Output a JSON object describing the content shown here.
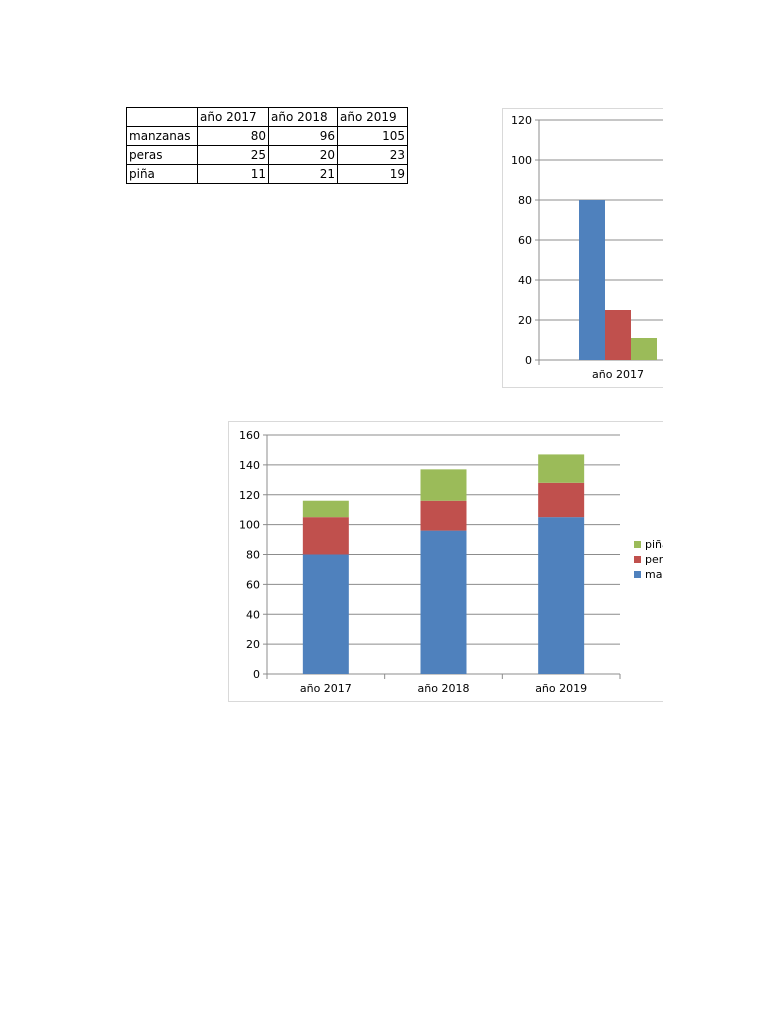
{
  "table": {
    "headers": [
      "",
      "año 2017",
      "año 2018",
      "año 2019"
    ],
    "rows": [
      {
        "label": "manzanas",
        "values": [
          "80",
          "96",
          "105"
        ]
      },
      {
        "label": "peras",
        "values": [
          "25",
          "20",
          "23"
        ]
      },
      {
        "label": "piña",
        "values": [
          "11",
          "21",
          "19"
        ]
      }
    ]
  },
  "chart_data": [
    {
      "type": "bar",
      "categories": [
        "año 2017"
      ],
      "series": [
        {
          "values": [
            80
          ],
          "color": "#4f81bd"
        },
        {
          "values": [
            25
          ],
          "color": "#c0504d"
        },
        {
          "values": [
            11
          ],
          "color": "#9bbb59"
        }
      ],
      "ylim": [
        0,
        120
      ],
      "yticks": [
        0,
        20,
        40,
        60,
        80,
        100,
        120
      ],
      "grid": true,
      "legend": "none"
    },
    {
      "type": "bar",
      "stacked": true,
      "categories": [
        "año 2017",
        "año 2018",
        "año 2019"
      ],
      "series": [
        {
          "name": "manzanas",
          "values": [
            80,
            96,
            105
          ],
          "color": "#4f81bd"
        },
        {
          "name": "peras",
          "values": [
            25,
            20,
            23
          ],
          "color": "#c0504d"
        },
        {
          "name": "piña",
          "values": [
            11,
            21,
            19
          ],
          "color": "#9bbb59"
        }
      ],
      "ylim": [
        0,
        160
      ],
      "yticks": [
        0,
        20,
        40,
        60,
        80,
        100,
        120,
        140,
        160
      ],
      "grid": true,
      "legend": "right",
      "legend_visible_text": [
        "piña",
        "peras",
        "manzanas"
      ]
    }
  ]
}
